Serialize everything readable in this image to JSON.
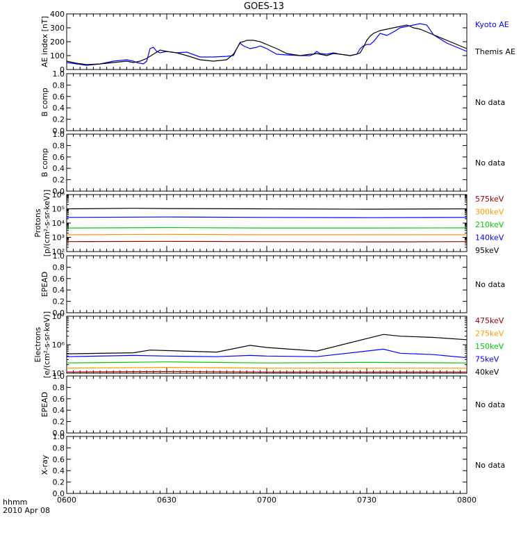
{
  "title": "GOES-13",
  "footer": {
    "time_label": "hhmm",
    "date_label": "2010 Apr 08"
  },
  "x_ticks": [
    "0600",
    "0630",
    "0700",
    "0730",
    "0800"
  ],
  "colors": {
    "kyoto": "#0000ff",
    "themis": "#000000",
    "ch1": "#000000",
    "ch2": "#0000ff",
    "ch3": "#00cc00",
    "ch4": "#ff9900",
    "ch5": "#990000"
  },
  "chart_data": [
    {
      "type": "line",
      "id": "ae",
      "ylabel": "AE index [nT]",
      "ylim": [
        0,
        400
      ],
      "yticks": [
        "0",
        "100",
        "200",
        "300",
        "400"
      ],
      "series": [
        {
          "name": "Kyoto AE",
          "color": "blue",
          "x": [
            0,
            3,
            6,
            10,
            14,
            18,
            20,
            21,
            22,
            23,
            24,
            25,
            26,
            27,
            28,
            30,
            33,
            36,
            40,
            44,
            48,
            50,
            51,
            52,
            53,
            54,
            55,
            57,
            58,
            60,
            63,
            66,
            70,
            73,
            74,
            75,
            76,
            78,
            80,
            82,
            85,
            87,
            88,
            89,
            90,
            91,
            92,
            93,
            94,
            96,
            98,
            100,
            102,
            104,
            106,
            108,
            110,
            112,
            114,
            116,
            117,
            118,
            119,
            120
          ],
          "y": [
            50,
            40,
            30,
            40,
            60,
            70,
            60,
            50,
            45,
            40,
            60,
            150,
            160,
            130,
            120,
            130,
            120,
            125,
            90,
            90,
            95,
            100,
            150,
            190,
            170,
            160,
            150,
            160,
            170,
            150,
            110,
            105,
            100,
            100,
            110,
            130,
            115,
            110,
            120,
            110,
            100,
            110,
            150,
            170,
            180,
            180,
            200,
            230,
            260,
            245,
            270,
            300,
            310,
            320,
            330,
            320,
            250,
            220,
            190,
            170,
            160,
            150,
            140,
            130
          ]
        },
        {
          "name": "Themis AE",
          "color": "black",
          "x": [
            0,
            3,
            6,
            10,
            14,
            18,
            20,
            22,
            24,
            26,
            28,
            30,
            33,
            36,
            40,
            44,
            48,
            50,
            51,
            52,
            53,
            54,
            56,
            58,
            60,
            63,
            66,
            70,
            73,
            74,
            75,
            76,
            78,
            80,
            82,
            85,
            87,
            88,
            89,
            90,
            91,
            92,
            93,
            94,
            96,
            98,
            100,
            102,
            104,
            106,
            108,
            110,
            112,
            114,
            116,
            117,
            118,
            119,
            120
          ],
          "y": [
            60,
            45,
            35,
            40,
            50,
            60,
            50,
            60,
            80,
            110,
            140,
            130,
            120,
            100,
            70,
            60,
            70,
            110,
            150,
            195,
            200,
            210,
            210,
            200,
            180,
            150,
            115,
            100,
            110,
            110,
            115,
            110,
            100,
            115,
            110,
            100,
            110,
            120,
            160,
            210,
            240,
            260,
            270,
            280,
            290,
            300,
            310,
            320,
            300,
            290,
            270,
            250,
            230,
            210,
            190,
            180,
            170,
            160,
            150
          ]
        }
      ]
    },
    {
      "type": "line",
      "id": "bcomp1",
      "ylabel": "B comp",
      "ylim": [
        0,
        1
      ],
      "yticks": [
        "0.0",
        "0.2",
        "0.4",
        "0.6",
        "0.8",
        "1.0"
      ],
      "note": "No data",
      "series": []
    },
    {
      "type": "line",
      "id": "bcomp2",
      "ylabel": "B comp",
      "ylim": [
        0,
        1
      ],
      "yticks": [
        "0.0",
        "0.2",
        "0.4",
        "0.6",
        "0.8",
        "1.0"
      ],
      "note": "No data",
      "series": []
    },
    {
      "type": "line",
      "id": "protons",
      "ylabel_line1": "Protons",
      "ylabel_line2": "[p/(cm²-s-sr-keV)]",
      "ylog": true,
      "ylim": [
        100,
        1000000
      ],
      "yticks": [
        "10²",
        "10³",
        "10⁴",
        "10⁵",
        "10⁶"
      ],
      "series": [
        {
          "name": "575keV",
          "color": "#990000",
          "x": [
            0,
            30,
            60,
            90,
            100,
            120
          ],
          "y": [
            500,
            520,
            500,
            480,
            480,
            500
          ]
        },
        {
          "name": "300keV",
          "color": "#ff9900",
          "x": [
            0,
            30,
            60,
            90,
            120
          ],
          "y": [
            1500,
            1600,
            1500,
            1500,
            1500
          ]
        },
        {
          "name": "210keV",
          "color": "#00cc00",
          "x": [
            0,
            30,
            60,
            90,
            120
          ],
          "y": [
            4500,
            4800,
            4500,
            4500,
            4600
          ]
        },
        {
          "name": "140keV",
          "color": "#0000ff",
          "x": [
            0,
            30,
            60,
            90,
            120
          ],
          "y": [
            25000,
            27000,
            25000,
            24000,
            25000
          ]
        },
        {
          "name": "95keV",
          "color": "#000000",
          "x": [
            0,
            20,
            30,
            60,
            90,
            120
          ],
          "y": [
            100000,
            110000,
            105000,
            100000,
            95000,
            100000
          ]
        }
      ]
    },
    {
      "type": "line",
      "id": "epead1",
      "ylabel": "EPEAD",
      "ylim": [
        0,
        1
      ],
      "yticks": [
        "0.0",
        "0.2",
        "0.4",
        "0.6",
        "0.8",
        "1.0"
      ],
      "note": "No data",
      "series": []
    },
    {
      "type": "line",
      "id": "electrons",
      "ylabel_line1": "Electrons",
      "ylabel_line2": "[e/(cm²-s-sr-keV)]",
      "ylog": true,
      "ylim": [
        100000,
        10000000
      ],
      "yticks": [
        "10⁵",
        "10⁶",
        "10⁷"
      ],
      "series": [
        {
          "name": "475keV",
          "color": "#990000",
          "x": [
            0,
            30,
            60,
            90,
            120
          ],
          "y": [
            110000,
            115000,
            110000,
            110000,
            110000
          ]
        },
        {
          "name": "275keV",
          "color": "#ff9900",
          "x": [
            0,
            30,
            60,
            90,
            120
          ],
          "y": [
            150000,
            160000,
            150000,
            150000,
            150000
          ]
        },
        {
          "name": "150keV",
          "color": "#00cc00",
          "x": [
            0,
            30,
            60,
            90,
            120
          ],
          "y": [
            230000,
            250000,
            230000,
            240000,
            230000
          ]
        },
        {
          "name": "75keV",
          "color": "#0000ff",
          "x": [
            0,
            20,
            30,
            45,
            55,
            60,
            75,
            95,
            100,
            110,
            120
          ],
          "y": [
            380000,
            420000,
            400000,
            380000,
            420000,
            400000,
            380000,
            700000,
            500000,
            450000,
            350000
          ]
        },
        {
          "name": "40keV",
          "color": "#000000",
          "x": [
            0,
            20,
            25,
            45,
            55,
            60,
            75,
            95,
            100,
            110,
            120
          ],
          "y": [
            480000,
            520000,
            650000,
            550000,
            950000,
            800000,
            600000,
            2300000,
            2000000,
            1800000,
            1500000
          ]
        }
      ]
    },
    {
      "type": "line",
      "id": "epead2",
      "ylabel": "EPEAD",
      "ylim": [
        0,
        1
      ],
      "yticks": [
        "0.0",
        "0.2",
        "0.4",
        "0.6",
        "0.8",
        "1.0"
      ],
      "note": "No data",
      "series": []
    },
    {
      "type": "line",
      "id": "xray",
      "ylabel": "X-ray",
      "ylim": [
        0,
        1
      ],
      "yticks": [
        "0.0",
        "0.2",
        "0.4",
        "0.6",
        "0.8",
        "1.0"
      ],
      "note": "No data",
      "series": []
    }
  ]
}
